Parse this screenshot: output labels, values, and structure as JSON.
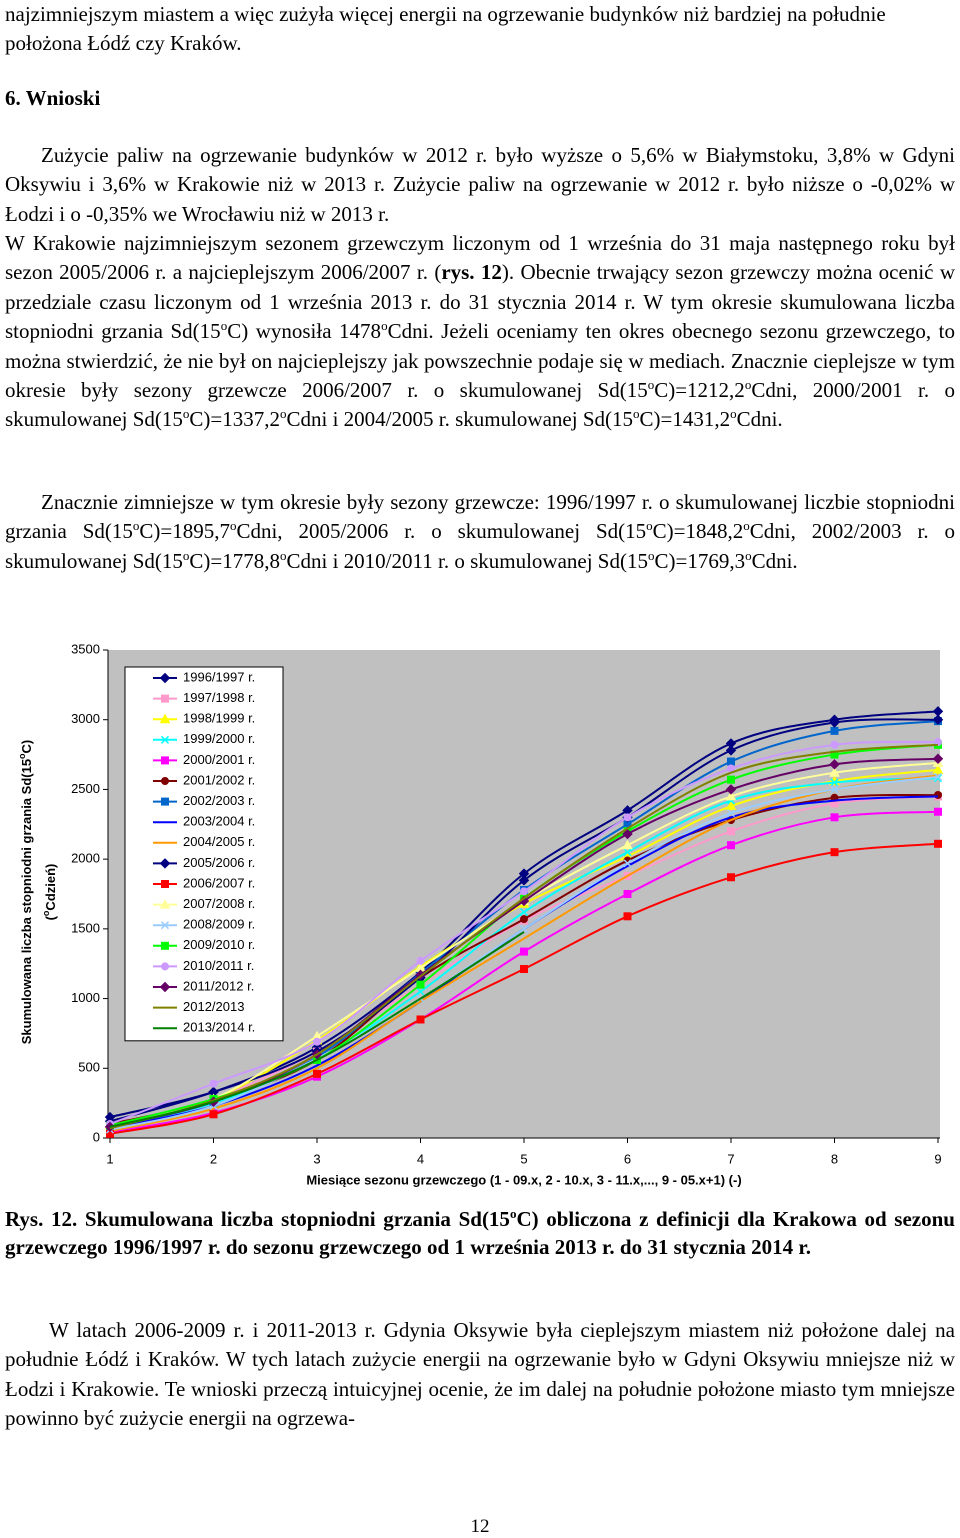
{
  "doc": {
    "p1": [
      "najzimniejszym miastem a więc zużyła więcej energii na ogrzewanie budynków niż bardziej na południe położona Łódź czy Kraków."
    ],
    "heading": "6. Wnioski",
    "p2a": [
      "Zużycie paliw na ogrzewanie budynków w 2012 r. było wyższe o 5,6% w Białymstoku, 3,8% w Gdyni Oksywiu i 3,6% w Krakowie niż w 2013 r. Zużycie paliw na ogrzewanie w 2012 r. było niższe o -0,02% w Łodzi i o -0,35% we Wrocławiu niż w 2013 r."
    ],
    "p2b": [
      "W Krakowie najzimniejszym sezonem grzewczym liczonym od 1 września do 31 maja następnego roku był sezon 2005/2006 r. a najcieplejszym 2006/2007 r. (",
      "rys. 12",
      "). Obecnie trwający sezon grzewczy można ocenić w przedziale czasu liczonym od 1 września 2013 r. do 31 stycznia 2014 r. W tym okresie skumulowana liczba stopniodni grzania Sd(15",
      "o",
      "C) wynosiła 1478",
      "o",
      "Cdni. Jeżeli oceniamy ten okres obecnego sezonu grzewczego, to można stwierdzić, że nie był on najcieplejszy jak powszechnie podaje się w mediach. Znacznie cieplejsze w tym okresie były sezony grzewcze 2006/2007 r. o skumulowanej Sd(15",
      "o",
      "C)=1212,2",
      "o",
      "Cdni, 2000/2001 r. o skumulowanej Sd(15",
      "o",
      "C)=1337,2",
      "o",
      "Cdni i 2004/2005 r. skumulowanej Sd(15",
      "o",
      "C)=1431,2",
      "o",
      "Cdni."
    ],
    "p3": [
      "Znacznie zimniejsze w tym okresie były sezony grzewcze: 1996/1997 r. o skumulowanej liczbie stopniodni grzania Sd(15",
      "o",
      "C)=1895,7",
      "o",
      "Cdni, 2005/2006 r. o skumulowanej Sd(15",
      "o",
      "C)=1848,2",
      "o",
      "Cdni, 2002/2003 r. o skumulowanej Sd(15",
      "o",
      "C)=1778,8",
      "o",
      "Cdni i 2010/2011 r. o skumulowanej Sd(15",
      "o",
      "C)=1769,3",
      "o",
      "Cdni."
    ],
    "caption": [
      "Rys. 12. Skumulowana liczba stopniodni grzania Sd(15",
      "o",
      "C) obliczona z definicji dla Krakowa od sezonu grzewczego 1996/1997 r. do sezonu grzewczego od 1 września 2013 r. do 31 stycznia 2014 r."
    ],
    "p5": [
      "W latach 2006-2009 r. i 2011-2013 r. Gdynia Oksywie była cieplejszym miastem niż położone dalej na południe Łódź i Kraków. W tych latach zużycie energii na ogrzewanie było w Gdyni Oksywiu mniejsze niż w Łodzi i Krakowie. Te wnioski przeczą intuicyjnej ocenie, że im dalej na południe położone miasto tym mniejsze powinno być zużycie energii na ogrzewa-"
    ],
    "page_number": "12"
  },
  "chart_data": {
    "type": "line",
    "y_label": [
      "Skumulowana liczba stopniodni grzania Sd(15",
      "o",
      "C)"
    ],
    "y_label2": [
      "(",
      "o",
      "Cdzień)"
    ],
    "x_label": "Miesiące sezonu grzewczego (1 - 09.x, 2 - 10.x, 3 - 11.x,..., 9 - 05.x+1) (-)",
    "x": [
      1,
      2,
      3,
      4,
      5,
      6,
      7,
      8,
      9
    ],
    "xlim": [
      1,
      9
    ],
    "xticks": [
      1,
      2,
      3,
      4,
      5,
      6,
      7,
      8,
      9
    ],
    "ylim": [
      0,
      3500
    ],
    "yticks": [
      0,
      500,
      1000,
      1500,
      2000,
      2500,
      3000,
      3500
    ],
    "background": "#c0c0c0",
    "series": [
      {
        "name": "1996/1997 r.",
        "color": "#000080",
        "marker": "diamond",
        "values": [
          120,
          330,
          650,
          1190,
          1896,
          2350,
          2830,
          3000,
          3060
        ]
      },
      {
        "name": "1997/1998 r.",
        "color": "#ff99cc",
        "marker": "square",
        "values": [
          60,
          280,
          620,
          1100,
          1560,
          1880,
          2200,
          2400,
          2450
        ]
      },
      {
        "name": "1998/1999 r.",
        "color": "#ffff00",
        "marker": "triangle",
        "values": [
          90,
          280,
          700,
          1230,
          1680,
          2020,
          2380,
          2560,
          2640
        ]
      },
      {
        "name": "1999/2000 r.",
        "color": "#00ffff",
        "marker": "x",
        "values": [
          80,
          250,
          560,
          1050,
          1620,
          2050,
          2420,
          2550,
          2580
        ]
      },
      {
        "name": "2000/2001 r.",
        "color": "#ff00ff",
        "marker": "square",
        "values": [
          40,
          180,
          440,
          850,
          1337,
          1750,
          2100,
          2300,
          2340
        ]
      },
      {
        "name": "2001/2002 r.",
        "color": "#800000",
        "marker": "circle",
        "values": [
          100,
          270,
          560,
          1150,
          1570,
          1990,
          2280,
          2440,
          2460
        ]
      },
      {
        "name": "2002/2003 r.",
        "color": "#0066cc",
        "marker": "square",
        "values": [
          70,
          260,
          580,
          1180,
          1779,
          2250,
          2700,
          2920,
          2990
        ]
      },
      {
        "name": "2003/2004 r.",
        "color": "#0000ff",
        "marker": "none",
        "values": [
          70,
          230,
          520,
          980,
          1500,
          1950,
          2300,
          2420,
          2450
        ]
      },
      {
        "name": "2004/2005 r.",
        "color": "#ff9900",
        "marker": "none",
        "values": [
          50,
          210,
          500,
          980,
          1431,
          1880,
          2280,
          2500,
          2600
        ]
      },
      {
        "name": "2005/2006 r.",
        "color": "#000080",
        "marker": "diamond",
        "values": [
          150,
          330,
          620,
          1150,
          1848,
          2300,
          2780,
          2980,
          3000
        ]
      },
      {
        "name": "2006/2007 r.",
        "color": "#ff0000",
        "marker": "square",
        "values": [
          30,
          170,
          460,
          850,
          1212,
          1590,
          1870,
          2050,
          2110
        ]
      },
      {
        "name": "2007/2008 r.",
        "color": "#ffff99",
        "marker": "triangle",
        "values": [
          90,
          280,
          730,
          1220,
          1700,
          2100,
          2450,
          2620,
          2690
        ]
      },
      {
        "name": "2008/2009 r.",
        "color": "#99ccff",
        "marker": "x",
        "values": [
          60,
          230,
          570,
          1000,
          1500,
          1970,
          2330,
          2500,
          2590
        ]
      },
      {
        "name": "2009/2010 r.",
        "color": "#00ff00",
        "marker": "square",
        "values": [
          90,
          280,
          560,
          1100,
          1720,
          2200,
          2570,
          2750,
          2820
        ]
      },
      {
        "name": "2010/2011 r.",
        "color": "#cc99ff",
        "marker": "circle",
        "values": [
          100,
          390,
          690,
          1270,
          1769,
          2300,
          2650,
          2820,
          2840
        ]
      },
      {
        "name": "2011/2012 r.",
        "color": "#660066",
        "marker": "diamond",
        "values": [
          80,
          260,
          600,
          1170,
          1700,
          2180,
          2500,
          2680,
          2720
        ]
      },
      {
        "name": "2012/2013",
        "color": "#808000",
        "marker": "none",
        "values": [
          70,
          270,
          600,
          1160,
          1720,
          2220,
          2620,
          2770,
          2820
        ]
      },
      {
        "name": "2013/2014 r.",
        "color": "#008000",
        "marker": "none",
        "values": [
          80,
          260,
          560,
          1000,
          1478,
          null,
          null,
          null,
          null
        ]
      }
    ]
  }
}
